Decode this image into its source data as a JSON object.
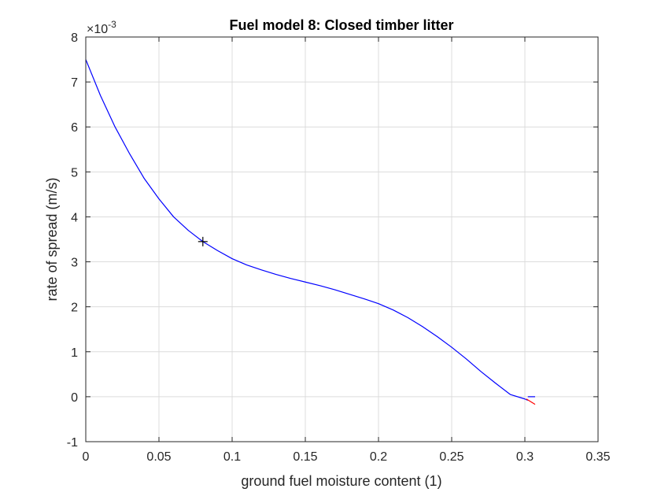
{
  "chart_data": {
    "type": "line",
    "title": "Fuel model 8: Closed timber litter",
    "xlabel": "ground fuel moisture content (1)",
    "ylabel": "rate of spread (m/s)",
    "xlim": [
      0,
      0.35
    ],
    "ylim": [
      -1,
      8
    ],
    "y_exponent_label": "×10",
    "y_exponent_power": "-3",
    "x_ticks": [
      "0",
      "0.05",
      "0.1",
      "0.15",
      "0.2",
      "0.25",
      "0.3",
      "0.35"
    ],
    "y_ticks": [
      "-1",
      "0",
      "1",
      "2",
      "3",
      "4",
      "5",
      "6",
      "7",
      "8"
    ],
    "grid": true,
    "series": [
      {
        "color": "#0000ff",
        "x": [
          0,
          0.01,
          0.02,
          0.03,
          0.04,
          0.05,
          0.06,
          0.07,
          0.08,
          0.09,
          0.1,
          0.11,
          0.12,
          0.13,
          0.14,
          0.15,
          0.16,
          0.17,
          0.18,
          0.19,
          0.2,
          0.21,
          0.22,
          0.23,
          0.24,
          0.25,
          0.26,
          0.27,
          0.28,
          0.29,
          0.3,
          0.302
        ],
        "y": [
          7.5,
          6.7,
          6.0,
          5.4,
          4.85,
          4.4,
          4.0,
          3.7,
          3.45,
          3.25,
          3.07,
          2.93,
          2.82,
          2.72,
          2.63,
          2.55,
          2.47,
          2.38,
          2.28,
          2.18,
          2.07,
          1.93,
          1.76,
          1.56,
          1.34,
          1.1,
          0.84,
          0.56,
          0.3,
          0.05,
          -0.05,
          -0.08
        ]
      }
    ],
    "marker": {
      "x": 0.08,
      "y": 3.45,
      "symbol": "+",
      "color": "#000000"
    },
    "end_segments": [
      {
        "color": "#0000ff",
        "x": [
          0.302,
          0.307
        ],
        "y": [
          0,
          0
        ]
      },
      {
        "color": "#ff0000",
        "x": [
          0.301,
          0.307
        ],
        "y": [
          -0.05,
          -0.17
        ]
      }
    ]
  }
}
